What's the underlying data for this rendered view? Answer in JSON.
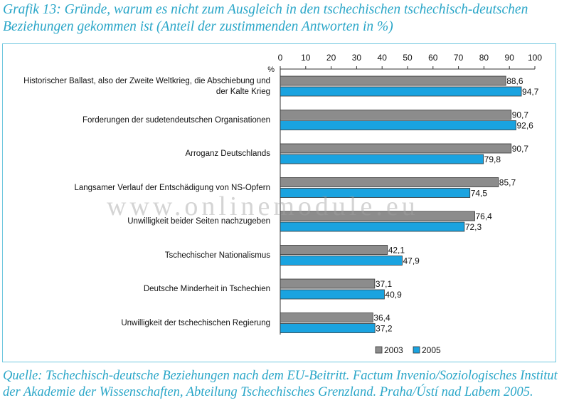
{
  "title": "Grafik 13: Gründe, warum es nicht zum Ausgleich in den tschechischen tschechisch-deutschen Beziehungen gekommen ist (Anteil der zustimmenden Antworten in %)",
  "source": "Quelle: Tschechisch-deutsche Beziehungen nach dem EU-Beitritt. Factum Invenio/Soziologisches Institut der Akademie der Wissenschaften, Abteilung Tschechisches Grenzland. Praha/Ústí nad Labem 2005.",
  "watermark": "www.onlinemodule.eu",
  "colors": {
    "accent": "#2aa6c8",
    "series_2003": "#8c8c8c",
    "series_2005": "#1aa3e0"
  },
  "chart_data": {
    "type": "bar",
    "orientation": "horizontal",
    "unit_label": "%",
    "xlim": [
      0,
      100
    ],
    "xticks": [
      "0",
      "10",
      "20",
      "30",
      "40",
      "50",
      "60",
      "70",
      "80",
      "90",
      "100"
    ],
    "grid": false,
    "legend_position": "bottom-right",
    "categories": [
      "Historischer Ballast, also der Zweite Weltkrieg, die Abschiebung und der Kalte Krieg",
      "Forderungen der sudetendeutschen Organisationen",
      "Arroganz Deutschlands",
      "Langsamer Verlauf der Entschädigung von NS-Opfern",
      "Unwilligkeit beider Seiten nachzugeben",
      "Tschechischer Nationalismus",
      "Deutsche Minderheit in Tschechien",
      "Unwilligkeit der tschechischen Regierung"
    ],
    "series": [
      {
        "name": "2003",
        "values": [
          88.6,
          90.7,
          90.7,
          85.7,
          76.4,
          42.1,
          37.1,
          36.4
        ],
        "labels": [
          "88,6",
          "90,7",
          "90,7",
          "85,7",
          "76,4",
          "42,1",
          "37,1",
          "36,4"
        ]
      },
      {
        "name": "2005",
        "values": [
          94.7,
          92.6,
          79.8,
          74.5,
          72.3,
          47.9,
          40.9,
          37.2
        ],
        "labels": [
          "94,7",
          "92,6",
          "79,8",
          "74,5",
          "72,3",
          "47,9",
          "40,9",
          "37,2"
        ]
      }
    ]
  }
}
